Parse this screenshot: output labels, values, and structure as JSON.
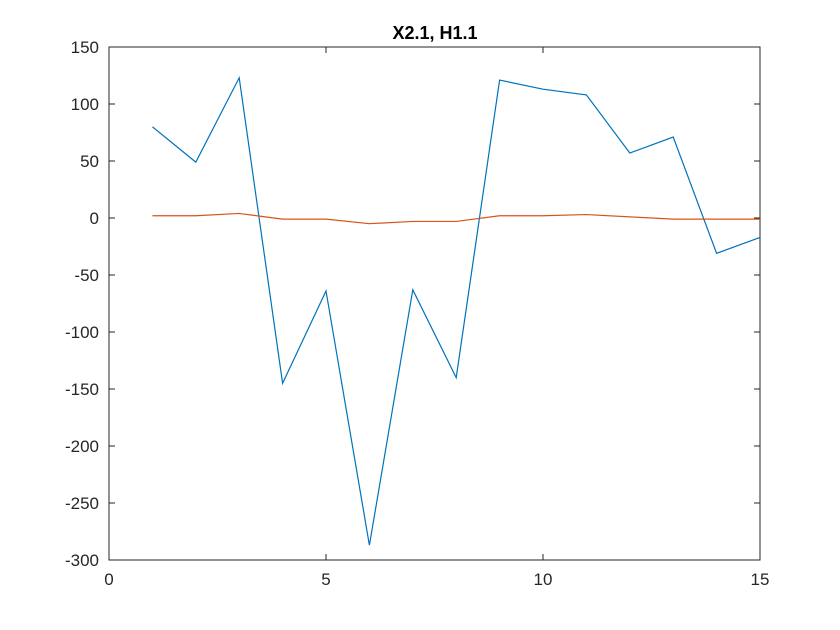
{
  "chart_data": {
    "type": "line",
    "title": "X2.1, H1.1",
    "xlabel": "",
    "ylabel": "",
    "xlim": [
      0,
      15
    ],
    "ylim": [
      -300,
      150
    ],
    "xticks": [
      0,
      5,
      10,
      15
    ],
    "yticks": [
      150,
      100,
      50,
      0,
      -50,
      -100,
      -150,
      -200,
      -250,
      -300
    ],
    "xtick_labels": [
      "0",
      "5",
      "10",
      "15"
    ],
    "ytick_labels": [
      "150",
      "100",
      "50",
      "0",
      "-50",
      "-100",
      "-150",
      "-200",
      "-250",
      "-300"
    ],
    "grid": false,
    "legend": "none",
    "x": [
      1,
      2,
      3,
      4,
      5,
      6,
      7,
      8,
      9,
      10,
      11,
      12,
      13,
      14,
      15
    ],
    "series": [
      {
        "color": "#0072BD",
        "values": [
          80,
          49,
          123,
          -145,
          -64,
          -287,
          -63,
          -140,
          121,
          113,
          108,
          57,
          71,
          -31,
          -17
        ]
      },
      {
        "color": "#D95319",
        "values": [
          2,
          2,
          4,
          -1,
          -1,
          -5,
          -3,
          -3,
          2,
          2,
          3,
          1,
          -1,
          -1,
          -1
        ]
      }
    ]
  }
}
